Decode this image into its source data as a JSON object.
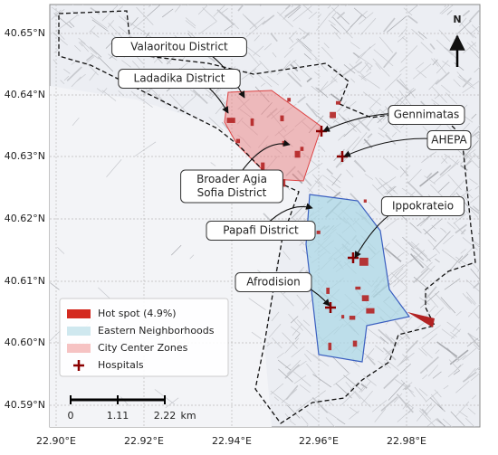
{
  "map": {
    "north": "N",
    "x_ticks": [
      "22.90°E",
      "22.92°E",
      "22.94°E",
      "22.96°E",
      "22.98°E"
    ],
    "y_ticks": [
      "40.65°N",
      "40.64°N",
      "40.63°N",
      "40.62°N",
      "40.61°N",
      "40.60°N",
      "40.59°N"
    ],
    "annotations": [
      {
        "lines": [
          "Valaoritou District"
        ]
      },
      {
        "lines": [
          "Ladadika District"
        ]
      },
      {
        "lines": [
          "Gennimatas"
        ]
      },
      {
        "lines": [
          "AHEPA"
        ]
      },
      {
        "lines": [
          "Broader Agia",
          "Sofia District"
        ]
      },
      {
        "lines": [
          "Ippokrateio"
        ]
      },
      {
        "lines": [
          "Papafi District"
        ]
      },
      {
        "lines": [
          "Afrodision"
        ]
      }
    ],
    "legend": [
      "Hot spot (4.9%)",
      "Eastern Neighborhoods",
      "City Center Zones",
      "Hospitals"
    ],
    "scale_bar": {
      "ticks": [
        "0",
        "1.11",
        "2.22"
      ],
      "unit": "km"
    }
  }
}
